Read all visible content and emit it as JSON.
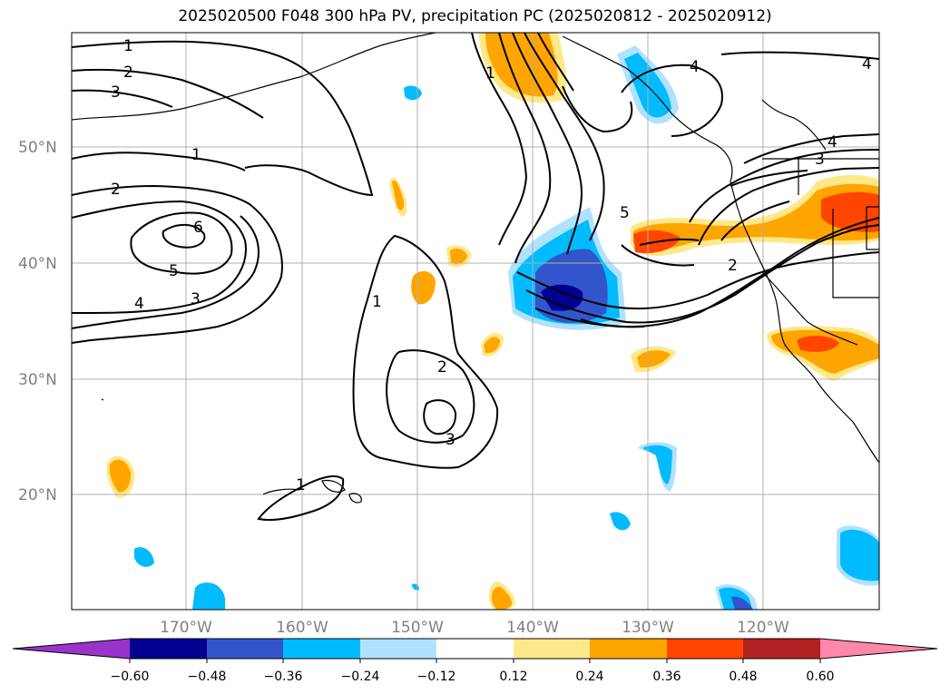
{
  "title": "2025020500 F048 300 hPa PV, precipitation PC (2025020812 - 2025020912)",
  "axes": {
    "lat_labels": [
      "50°N",
      "40°N",
      "30°N",
      "20°N"
    ],
    "lon_labels": [
      "170°W",
      "160°W",
      "150°W",
      "140°W",
      "130°W",
      "120°W"
    ]
  },
  "colorbar": {
    "ticks": [
      "−0.60",
      "−0.48",
      "−0.36",
      "−0.24",
      "−0.12",
      "0.12",
      "0.24",
      "0.36",
      "0.48",
      "0.60"
    ],
    "colors": [
      "#9933cc",
      "#000090",
      "#3355cc",
      "#00bbff",
      "#b0e2ff",
      "#ffffff",
      "#ffe88a",
      "#ffa500",
      "#ff4500",
      "#b22222",
      "#ff88aa"
    ]
  },
  "contour_labels": [
    "1",
    "2",
    "3",
    "1",
    "2",
    "6",
    "5",
    "4",
    "3",
    "1",
    "2",
    "3",
    "1",
    "1",
    "5",
    "4",
    "4",
    "4",
    "3",
    "2"
  ]
}
